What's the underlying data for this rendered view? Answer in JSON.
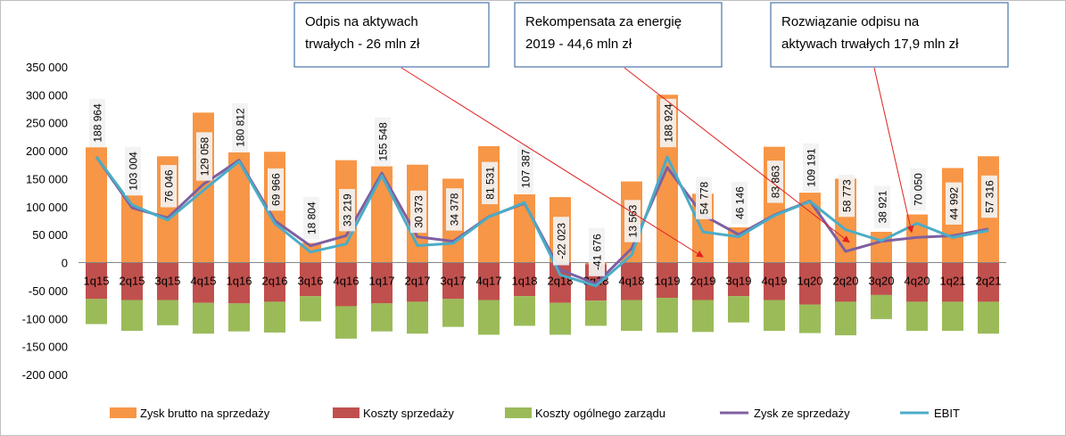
{
  "chart_data": {
    "type": "bar",
    "categories": [
      "1q15",
      "2q15",
      "3q15",
      "4q15",
      "1q16",
      "2q16",
      "3q16",
      "4q16",
      "1q17",
      "2q17",
      "3q17",
      "4q17",
      "1q18",
      "2q18",
      "3q18",
      "4q18",
      "1q19",
      "2q19",
      "3q19",
      "4q19",
      "1q20",
      "2q20",
      "3q20",
      "4q20",
      "1q21",
      "2q21"
    ],
    "ylim": [
      -200000,
      350000
    ],
    "yticks": [
      -200000,
      -150000,
      -100000,
      -50000,
      0,
      50000,
      100000,
      150000,
      200000,
      250000,
      300000,
      350000
    ],
    "ytick_labels": [
      "-200 000",
      "-150 000",
      "-100 000",
      "-50 000",
      "0",
      "50 000",
      "100 000",
      "150 000",
      "200 000",
      "250 000",
      "300 000",
      "350 000"
    ],
    "grid": false,
    "legend_position": "bottom",
    "series": [
      {
        "name": "Zysk brutto na sprzedaży",
        "kind": "bar",
        "color": "#f79646",
        "values": [
          206000,
          120000,
          190000,
          268000,
          197000,
          198000,
          35000,
          183000,
          172000,
          175000,
          150000,
          208000,
          122000,
          117000,
          -3000,
          145000,
          300000,
          123000,
          63000,
          207000,
          125000,
          150000,
          55000,
          86000,
          169000,
          190000
        ]
      },
      {
        "name": "Koszty sprzedaży",
        "kind": "bar",
        "color": "#c0504d",
        "values": [
          -65000,
          -67000,
          -67000,
          -72000,
          -73000,
          -70000,
          -60000,
          -78000,
          -73000,
          -70000,
          -65000,
          -67000,
          -60000,
          -72000,
          -65000,
          -67000,
          -63000,
          -67000,
          -60000,
          -67000,
          -75000,
          -70000,
          -58000,
          -70000,
          -70000,
          -70000
        ]
      },
      {
        "name": "Koszty ogólnego zarządu",
        "kind": "bar",
        "color": "#9bbb59",
        "values": [
          -45000,
          -55000,
          -45000,
          -55000,
          -50000,
          -55000,
          -45000,
          -58000,
          -50000,
          -57000,
          -50000,
          -62000,
          -53000,
          -57000,
          -45000,
          -55000,
          -62000,
          -57000,
          -47000,
          -55000,
          -51000,
          -60000,
          -43000,
          -52000,
          -52000,
          -57000
        ]
      },
      {
        "name": "Zysk ze sprzedaży",
        "kind": "line",
        "color": "#7f5fa0",
        "values": [
          189000,
          98000,
          80000,
          140000,
          183000,
          75000,
          30000,
          48000,
          160000,
          46000,
          38000,
          82000,
          106000,
          -13000,
          -38000,
          25000,
          170000,
          85000,
          50000,
          85000,
          110000,
          20000,
          38000,
          45000,
          48000,
          60000
        ]
      },
      {
        "name": "EBIT",
        "kind": "line",
        "color": "#4bacc6",
        "values": [
          188964,
          103004,
          76046,
          129058,
          180812,
          69966,
          18804,
          33219,
          155548,
          30373,
          34378,
          81531,
          107387,
          -22023,
          -41676,
          13563,
          188924,
          54778,
          46146,
          83863,
          109191,
          58773,
          38921,
          70050,
          44992,
          57316
        ]
      }
    ],
    "data_labels": [
      "188 964",
      "103 004",
      "76 046",
      "129 058",
      "180 812",
      "69 966",
      "18 804",
      "33 219",
      "155 548",
      "30 373",
      "34 378",
      "81 531",
      "107 387",
      "-22 023",
      "-41 676",
      "13 563",
      "188 924",
      "54 778",
      "46 146",
      "83 863",
      "109 191",
      "58 773",
      "38 921",
      "70 050",
      "44 992",
      "57 316"
    ],
    "annotations": [
      {
        "lines": [
          "Odpis na aktywach",
          "trwałych - 26 mln zł"
        ],
        "target_category": "2q19"
      },
      {
        "lines": [
          "Rekompensata za energię",
          "2019 - 44,6 mln  zł"
        ],
        "target_category": "2q20"
      },
      {
        "lines": [
          "Rozwiązanie odpisu na",
          "aktywach trwałych 17,9 mln zł"
        ],
        "target_category": "4q20"
      }
    ]
  }
}
